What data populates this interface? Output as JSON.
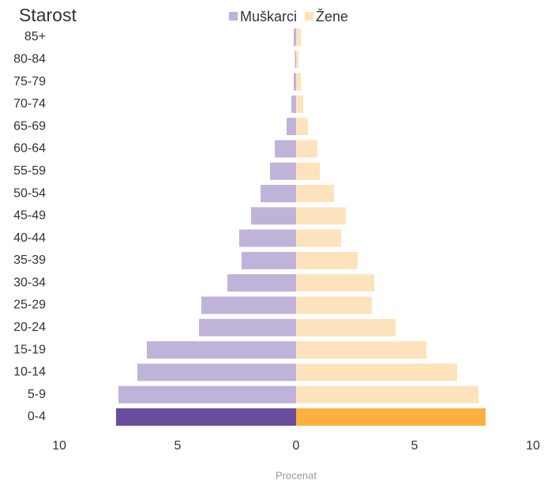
{
  "chart_data": {
    "type": "pyramid",
    "title": "Starost",
    "xlabel": "Procenat",
    "categories": [
      "0-4",
      "5-9",
      "10-14",
      "15-19",
      "20-24",
      "25-29",
      "30-34",
      "35-39",
      "40-44",
      "45-49",
      "50-54",
      "55-59",
      "60-64",
      "65-69",
      "70-74",
      "75-79",
      "80-84",
      "85+"
    ],
    "series": [
      {
        "name": "Muškarci",
        "color": "#bfb3da",
        "side": "left",
        "colors": [
          "#6a4c9c",
          "#bfb3da",
          "#bfb3da",
          "#bfb3da",
          "#bfb3da",
          "#bfb3da",
          "#bfb3da",
          "#bfb3da",
          "#bfb3da",
          "#bfb3da",
          "#bfb3da",
          "#bfb3da",
          "#bfb3da",
          "#bfb3da",
          "#bfb3da",
          "#bfb3da",
          "#bfb3da",
          "#bfb3da"
        ],
        "values": [
          7.6,
          7.5,
          6.7,
          6.3,
          4.1,
          4.0,
          2.9,
          2.3,
          2.4,
          1.9,
          1.5,
          1.1,
          0.9,
          0.4,
          0.2,
          0.1,
          0.05,
          0.1
        ]
      },
      {
        "name": "Žene",
        "color": "#fde3bb",
        "side": "right",
        "colors": [
          "#fbb040",
          "#fde3bb",
          "#fde3bb",
          "#fde3bb",
          "#fde3bb",
          "#fde3bb",
          "#fde3bb",
          "#fde3bb",
          "#fde3bb",
          "#fde3bb",
          "#fde3bb",
          "#fde3bb",
          "#fde3bb",
          "#fde3bb",
          "#fde3bb",
          "#fde3bb",
          "#fde3bb",
          "#fde3bb"
        ],
        "values": [
          8.0,
          7.7,
          6.8,
          5.5,
          4.2,
          3.2,
          3.3,
          2.6,
          1.9,
          2.1,
          1.6,
          1.0,
          0.9,
          0.5,
          0.3,
          0.2,
          0.1,
          0.2
        ]
      }
    ],
    "xlim": [
      -10,
      10
    ],
    "xticks": [
      {
        "value": -10,
        "label": "10"
      },
      {
        "value": -5,
        "label": "5"
      },
      0,
      5,
      10
    ],
    "legend": "top"
  }
}
